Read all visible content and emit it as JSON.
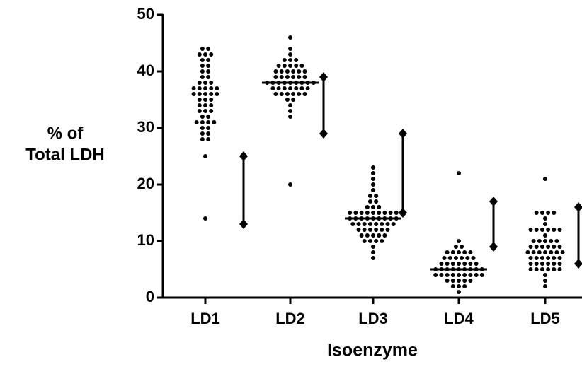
{
  "chart_data": {
    "type": "dot",
    "y_label": [
      "% of",
      "Total LDH"
    ],
    "x_label": "Isoenzyme",
    "color": "#000000",
    "ylim": [
      0,
      50
    ],
    "yticks": [
      0,
      10,
      20,
      30,
      40,
      50
    ],
    "categories": [
      "LD1",
      "LD2",
      "LD3",
      "LD4",
      "LD5"
    ],
    "groups": [
      {
        "values": [
          44,
          44,
          43,
          43,
          43,
          42,
          42,
          41,
          41,
          40,
          40,
          39,
          39,
          38,
          38,
          38,
          37,
          37,
          37,
          37,
          37,
          36,
          36,
          36,
          36,
          36,
          35,
          35,
          35,
          34,
          34,
          34,
          33,
          33,
          33,
          32,
          32,
          31,
          31,
          31,
          31,
          30,
          30,
          29,
          29,
          28,
          28,
          25,
          14
        ]
      },
      {
        "values": [
          46,
          44,
          43,
          42,
          42,
          42,
          41,
          41,
          41,
          41,
          41,
          40,
          40,
          40,
          40,
          40,
          40,
          39,
          39,
          39,
          39,
          39,
          39,
          38,
          38,
          38,
          38,
          38,
          38,
          38,
          38,
          38,
          37,
          37,
          37,
          37,
          37,
          37,
          37,
          36,
          36,
          36,
          36,
          36,
          36,
          35,
          35,
          34,
          33,
          32,
          20
        ]
      },
      {
        "values": [
          23,
          22,
          21,
          20,
          19,
          18,
          18,
          17,
          17,
          16,
          16,
          16,
          15,
          15,
          15,
          15,
          15,
          15,
          15,
          15,
          15,
          14,
          14,
          14,
          14,
          14,
          14,
          14,
          14,
          14,
          13,
          13,
          13,
          13,
          13,
          13,
          13,
          13,
          12,
          12,
          12,
          12,
          12,
          12,
          11,
          11,
          11,
          11,
          11,
          10,
          10,
          10,
          10,
          9,
          8,
          7
        ]
      },
      {
        "values": [
          22,
          10,
          9,
          9,
          8,
          8,
          8,
          8,
          8,
          7,
          7,
          7,
          7,
          7,
          7,
          6,
          6,
          6,
          6,
          6,
          6,
          6,
          5,
          5,
          5,
          5,
          5,
          5,
          5,
          5,
          5,
          4,
          4,
          4,
          4,
          4,
          4,
          4,
          4,
          4,
          3,
          3,
          3,
          3,
          3,
          2,
          2,
          2,
          1
        ]
      },
      {
        "values": [
          21,
          15,
          15,
          15,
          15,
          14,
          13,
          12,
          12,
          12,
          12,
          12,
          12,
          11,
          10,
          10,
          10,
          10,
          10,
          9,
          9,
          9,
          9,
          9,
          9,
          8,
          8,
          8,
          8,
          8,
          8,
          8,
          7,
          7,
          7,
          7,
          7,
          7,
          6,
          6,
          6,
          6,
          6,
          6,
          5,
          5,
          5,
          5,
          5,
          5,
          4,
          3,
          2
        ]
      }
    ],
    "medians": [
      null,
      38,
      14,
      5,
      null
    ],
    "reference_ranges": [
      [
        13,
        25
      ],
      [
        29,
        39
      ],
      [
        15,
        29
      ],
      [
        9,
        17
      ],
      [
        6,
        16
      ]
    ]
  }
}
